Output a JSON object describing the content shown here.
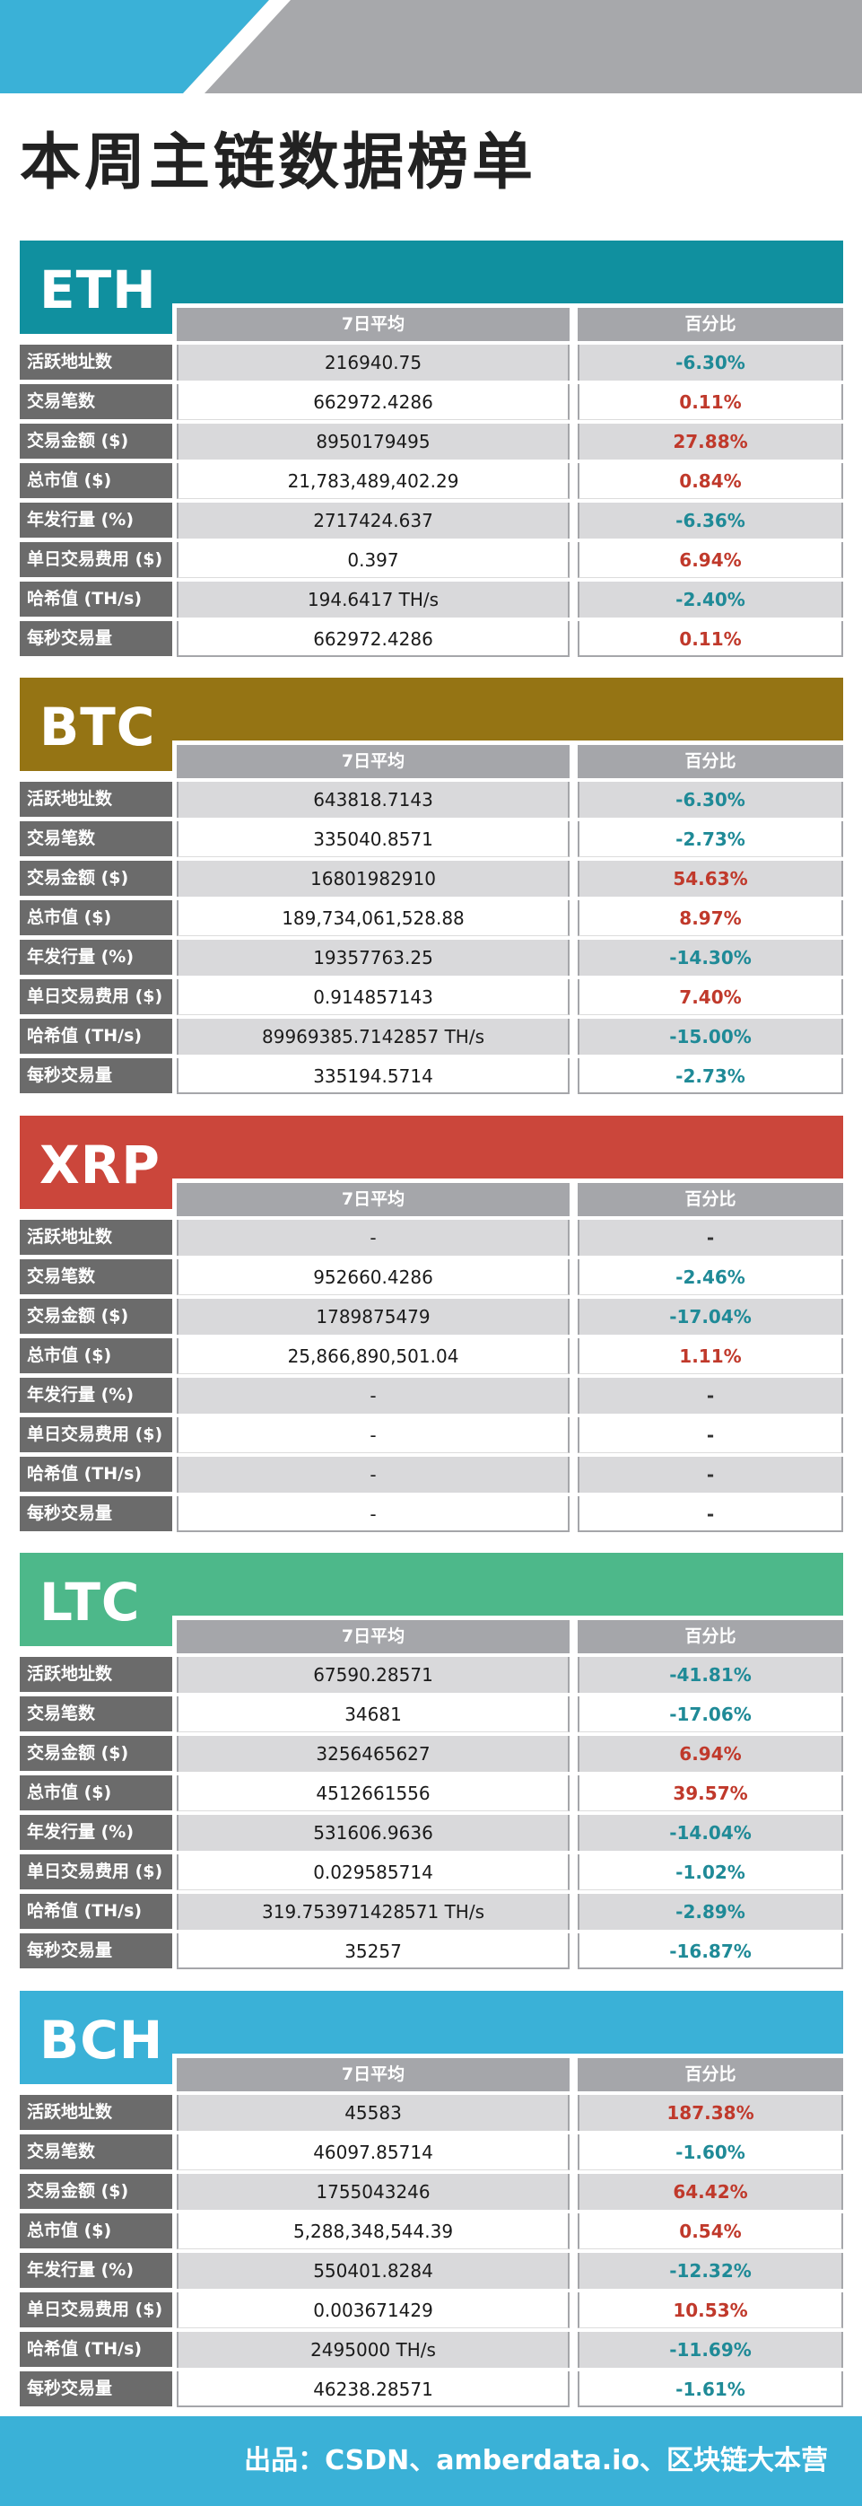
{
  "title": "本周主链数据榜单",
  "header_band": {
    "blue": "#3ab1d7",
    "gray": "#a7a8ab"
  },
  "columns": {
    "avg": "7日平均",
    "pct": "百分比"
  },
  "row_labels": [
    "活跃地址数",
    "交易笔数",
    "交易金额 ($)",
    "总市值 ($)",
    "年发行量 (%)",
    "单日交易费用 ($)",
    "哈希值 (TH/s)",
    "每秒交易量"
  ],
  "sections": [
    {
      "coin": "ETH",
      "color": "#10909f",
      "rows": [
        {
          "avg": "216940.75",
          "pct": "-6.30%"
        },
        {
          "avg": "662972.4286",
          "pct": "0.11%"
        },
        {
          "avg": "8950179495",
          "pct": "27.88%"
        },
        {
          "avg": "21,783,489,402.29",
          "pct": "0.84%"
        },
        {
          "avg": "2717424.637",
          "pct": "-6.36%"
        },
        {
          "avg": "0.397",
          "pct": "6.94%"
        },
        {
          "avg": "194.6417 TH/s",
          "pct": "-2.40%"
        },
        {
          "avg": "662972.4286",
          "pct": "0.11%"
        }
      ]
    },
    {
      "coin": "BTC",
      "color": "#957414",
      "rows": [
        {
          "avg": "643818.7143",
          "pct": "-6.30%"
        },
        {
          "avg": "335040.8571",
          "pct": "-2.73%"
        },
        {
          "avg": "16801982910",
          "pct": "54.63%"
        },
        {
          "avg": "189,734,061,528.88",
          "pct": "8.97%"
        },
        {
          "avg": "19357763.25",
          "pct": "-14.30%"
        },
        {
          "avg": "0.914857143",
          "pct": "7.40%"
        },
        {
          "avg": "89969385.7142857 TH/s",
          "pct": "-15.00%"
        },
        {
          "avg": "335194.5714",
          "pct": "-2.73%"
        }
      ]
    },
    {
      "coin": "XRP",
      "color": "#cb463b",
      "rows": [
        {
          "avg": "-",
          "pct": "-"
        },
        {
          "avg": "952660.4286",
          "pct": "-2.46%"
        },
        {
          "avg": "1789875479",
          "pct": "-17.04%"
        },
        {
          "avg": "25,866,890,501.04",
          "pct": "1.11%"
        },
        {
          "avg": "-",
          "pct": "-"
        },
        {
          "avg": "-",
          "pct": "-"
        },
        {
          "avg": "-",
          "pct": "-"
        },
        {
          "avg": "-",
          "pct": "-"
        }
      ]
    },
    {
      "coin": "LTC",
      "color": "#4db88a",
      "rows": [
        {
          "avg": "67590.28571",
          "pct": "-41.81%"
        },
        {
          "avg": "34681",
          "pct": "-17.06%"
        },
        {
          "avg": "3256465627",
          "pct": "6.94%"
        },
        {
          "avg": "4512661556",
          "pct": "39.57%"
        },
        {
          "avg": "531606.9636",
          "pct": "-14.04%"
        },
        {
          "avg": "0.029585714",
          "pct": "-1.02%"
        },
        {
          "avg": "319.753971428571 TH/s",
          "pct": "-2.89%"
        },
        {
          "avg": "35257",
          "pct": "-16.87%"
        }
      ]
    },
    {
      "coin": "BCH",
      "color": "#3ab1d7",
      "rows": [
        {
          "avg": "45583",
          "pct": "187.38%"
        },
        {
          "avg": "46097.85714",
          "pct": "-1.60%"
        },
        {
          "avg": "1755043246",
          "pct": "64.42%"
        },
        {
          "avg": "5,288,348,544.39",
          "pct": "0.54%"
        },
        {
          "avg": "550401.8284",
          "pct": "-12.32%"
        },
        {
          "avg": "0.003671429",
          "pct": "10.53%"
        },
        {
          "avg": "2495000 TH/s",
          "pct": "-11.69%"
        },
        {
          "avg": "46238.28571",
          "pct": "-1.61%"
        }
      ]
    }
  ],
  "footer": {
    "source": "出品：CSDN、amberdata.io、区块链大本营",
    "color": "#3ab1d7"
  }
}
